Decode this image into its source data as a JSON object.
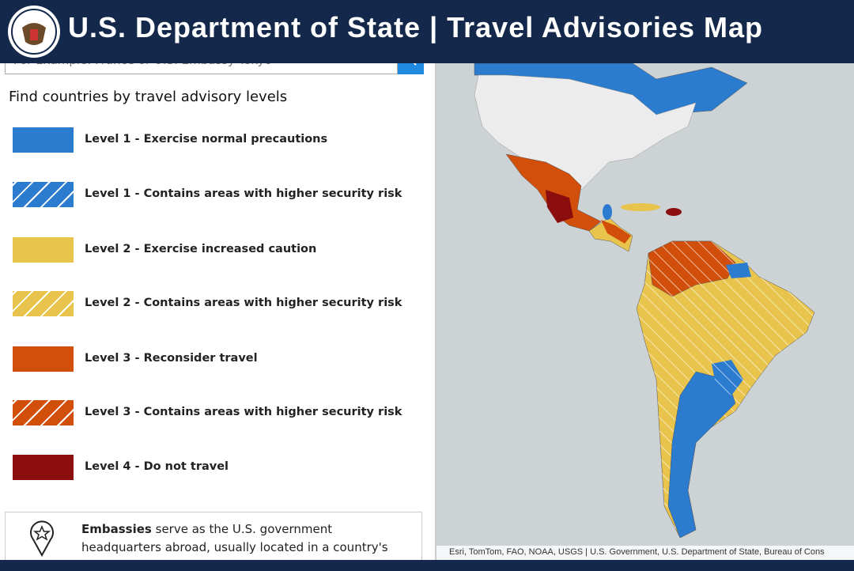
{
  "header": {
    "title": "U.S. Department of State | Travel Advisories Map"
  },
  "search": {
    "placeholder": "For Example: France or U.S. Embassy Tokyo"
  },
  "legend": {
    "title": "Find countries by travel advisory levels",
    "items": [
      {
        "label": "Level 1 - Exercise normal precautions",
        "color": "#2b7bcf",
        "hatched": false
      },
      {
        "label": "Level 1 - Contains areas with higher security risk",
        "color": "#2b7bcf",
        "hatched": true
      },
      {
        "label": "Level 2 - Exercise increased caution",
        "color": "#e8c44c",
        "hatched": false
      },
      {
        "label": "Level 2 - Contains areas with higher security risk",
        "color": "#e8c44c",
        "hatched": true
      },
      {
        "label": "Level 3 - Reconsider travel",
        "color": "#d24f0b",
        "hatched": false
      },
      {
        "label": "Level 3 - Contains areas with higher security risk",
        "color": "#d24f0b",
        "hatched": true
      },
      {
        "label": "Level 4 - Do not travel",
        "color": "#8b0d0d",
        "hatched": false
      }
    ]
  },
  "embassy": {
    "term": "Embassies",
    "text": "serve as the U.S. government headquarters abroad, usually located in a country's capital city."
  },
  "map": {
    "attribution": "Esri, TomTom, FAO, NOAA, USGS | U.S. Government, U.S. Department of State, Bureau of Cons"
  }
}
